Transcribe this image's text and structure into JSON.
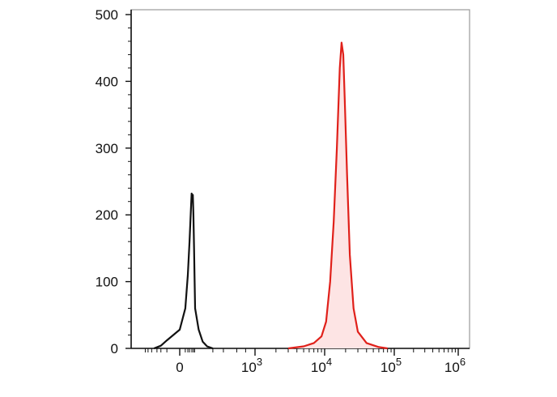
{
  "chart_data": {
    "type": "area",
    "title": "",
    "xlabel": "",
    "ylabel": "",
    "x_scale": "biexponential",
    "ylim": [
      0,
      500
    ],
    "y_ticks": [
      0,
      100,
      200,
      300,
      400,
      500
    ],
    "y_tick_labels": [
      "0",
      "100",
      "200",
      "300",
      "400",
      "500"
    ],
    "x_tick_labels": [
      {
        "base": "0",
        "exp": ""
      },
      {
        "base": "10",
        "exp": "3"
      },
      {
        "base": "10",
        "exp": "4"
      },
      {
        "base": "10",
        "exp": "5"
      },
      {
        "base": "10",
        "exp": "6"
      }
    ],
    "grid": false,
    "legend": "none",
    "series": [
      {
        "color": "#111111",
        "fill": "none",
        "points": [
          [
            -40,
            0
          ],
          [
            -20,
            4
          ],
          [
            -10,
            12
          ],
          [
            0,
            28
          ],
          [
            10,
            60
          ],
          [
            20,
            110
          ],
          [
            30,
            160
          ],
          [
            40,
            205
          ],
          [
            48,
            232
          ],
          [
            55,
            222
          ],
          [
            62,
            230
          ],
          [
            70,
            200
          ],
          [
            80,
            150
          ],
          [
            90,
            100
          ],
          [
            100,
            60
          ],
          [
            115,
            28
          ],
          [
            135,
            10
          ],
          [
            160,
            3
          ],
          [
            200,
            0
          ]
        ]
      },
      {
        "color": "#e0201a",
        "fill": "#fde4e4",
        "points": [
          [
            3000,
            0
          ],
          [
            5000,
            3
          ],
          [
            7000,
            8
          ],
          [
            9000,
            18
          ],
          [
            10500,
            40
          ],
          [
            12000,
            100
          ],
          [
            13500,
            190
          ],
          [
            15000,
            300
          ],
          [
            16500,
            420
          ],
          [
            17500,
            458
          ],
          [
            18500,
            440
          ],
          [
            19500,
            370
          ],
          [
            21000,
            260
          ],
          [
            23000,
            140
          ],
          [
            26000,
            60
          ],
          [
            30000,
            25
          ],
          [
            40000,
            8
          ],
          [
            60000,
            2
          ],
          [
            80000,
            0
          ]
        ]
      }
    ]
  }
}
